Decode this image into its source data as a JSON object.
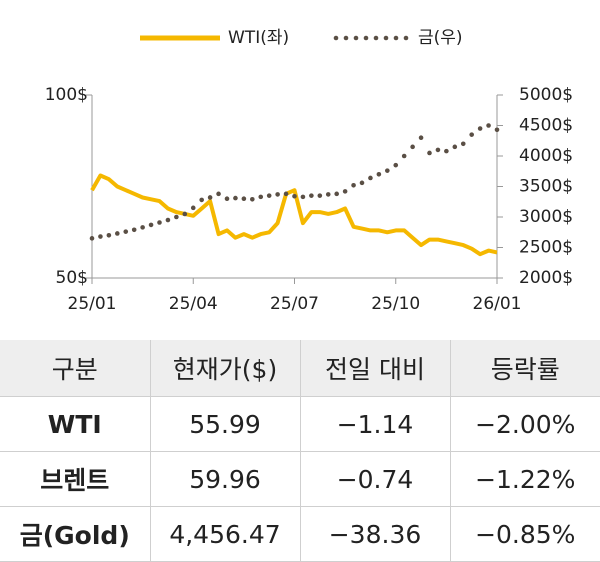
{
  "chart_data": {
    "type": "line",
    "legend": "top",
    "x": [
      0,
      0.25,
      0.5,
      0.75,
      1,
      1.25,
      1.5,
      1.75,
      2,
      2.25,
      2.5,
      2.75,
      3,
      3.25,
      3.5,
      3.75,
      4,
      4.25,
      4.5,
      4.75,
      5,
      5.25,
      5.5,
      5.75,
      6,
      6.25,
      6.5,
      6.75,
      7,
      7.25,
      7.5,
      7.75,
      8,
      8.25,
      8.5,
      8.75,
      9,
      9.25,
      9.5,
      9.75,
      10,
      10.25,
      10.5,
      10.75,
      11,
      11.25,
      11.5,
      11.75,
      12
    ],
    "xlim": [
      0,
      12
    ],
    "xticks": [
      {
        "value": 0,
        "label": "25/01"
      },
      {
        "value": 3,
        "label": "25/04"
      },
      {
        "value": 6,
        "label": "25/07"
      },
      {
        "value": 9,
        "label": "25/10"
      },
      {
        "value": 12,
        "label": "26/01"
      }
    ],
    "ylim": [
      50,
      100
    ],
    "yticks": [
      {
        "value": 50,
        "label": "50$"
      },
      {
        "value": 100,
        "label": "100$"
      }
    ],
    "y2lim": [
      2000,
      5000
    ],
    "y2ticks": [
      {
        "value": 2000,
        "label": "2000$"
      },
      {
        "value": 2500,
        "label": "2500$"
      },
      {
        "value": 3000,
        "label": "3000$"
      },
      {
        "value": 3500,
        "label": "3500$"
      },
      {
        "value": 4000,
        "label": "4000$"
      },
      {
        "value": 4500,
        "label": "4500$"
      },
      {
        "value": 5000,
        "label": "5000$"
      }
    ],
    "series": [
      {
        "name": "WTI(좌)",
        "color": "#f5b800",
        "style": "solid",
        "values": [
          74,
          78,
          77,
          75,
          74,
          73,
          72,
          71.5,
          71,
          69,
          68,
          67.5,
          67,
          69,
          71,
          62,
          63,
          61,
          62,
          61,
          62,
          62.5,
          65,
          73,
          74,
          65,
          68,
          68,
          67.5,
          68,
          69,
          64,
          63.5,
          63,
          63,
          62.5,
          63,
          63,
          61,
          59,
          60.5,
          60.5,
          60,
          59.5,
          59,
          58,
          56.5,
          57.5,
          57
        ]
      },
      {
        "name": "금(우)",
        "color": "#5a4f45",
        "style": "dotted",
        "axis": "y2",
        "values": [
          2650,
          2680,
          2700,
          2730,
          2760,
          2790,
          2830,
          2870,
          2910,
          2950,
          3000,
          3050,
          3150,
          3280,
          3320,
          3380,
          3300,
          3310,
          3300,
          3290,
          3330,
          3350,
          3370,
          3380,
          3340,
          3330,
          3350,
          3350,
          3370,
          3380,
          3420,
          3520,
          3560,
          3640,
          3700,
          3760,
          3850,
          4000,
          4150,
          4300,
          4050,
          4100,
          4080,
          4150,
          4200,
          4350,
          4450,
          4500,
          4430
        ]
      }
    ]
  },
  "table": {
    "header": [
      "구분",
      "현재가($)",
      "전일 대비",
      "등락률"
    ],
    "rows": [
      [
        "WTI",
        "55.99",
        "−1.14",
        "−2.00%"
      ],
      [
        "브렌트",
        "59.96",
        "−0.74",
        "−1.22%"
      ],
      [
        "금(Gold)",
        "4,456.47",
        "−38.36",
        "−0.85%"
      ]
    ]
  }
}
